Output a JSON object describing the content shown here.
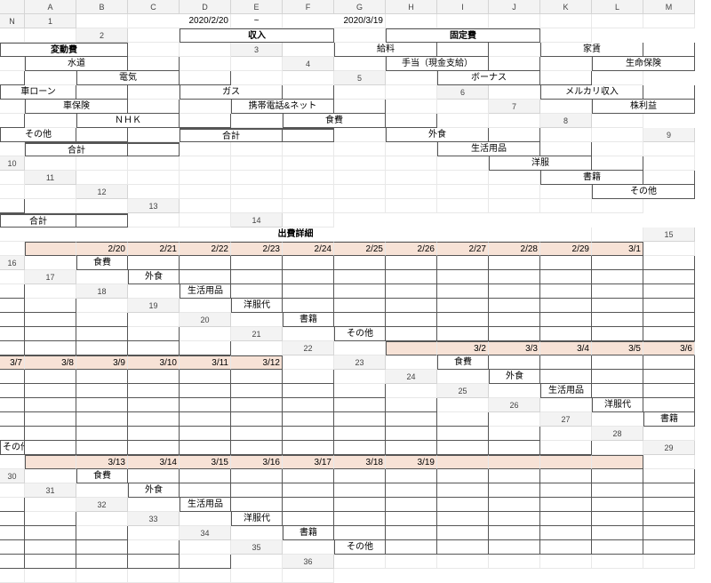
{
  "columns": [
    "A",
    "B",
    "C",
    "D",
    "E",
    "F",
    "G",
    "H",
    "I",
    "J",
    "K",
    "L",
    "M",
    "N"
  ],
  "row_count": 36,
  "dates": {
    "start": "2020/2/20",
    "tilde": "~",
    "end": "2020/3/19"
  },
  "income": {
    "title": "収入",
    "items": [
      "給料",
      "手当（現金支給）",
      "ボーナス",
      "メルカリ収入",
      "株利益",
      "その他"
    ],
    "total_label": "合計"
  },
  "fixed": {
    "title": "固定費",
    "items": [
      "家賃",
      "生命保険",
      "車ローン",
      "車保険",
      "ＮＨＫ"
    ],
    "total_label": "合計"
  },
  "variable": {
    "title": "変動費",
    "items": [
      "水道",
      "電気",
      "ガス",
      "携帯電話&ネット",
      "食費",
      "外食",
      "生活用品",
      "洋服",
      "書籍",
      "その他"
    ],
    "total_label": "合計"
  },
  "detail": {
    "title": "出費詳細",
    "row_labels": [
      "食費",
      "外食",
      "生活用品",
      "洋服代",
      "書籍",
      "その他"
    ],
    "date_sets": [
      [
        "2/20",
        "2/21",
        "2/22",
        "2/23",
        "2/24",
        "2/25",
        "2/26",
        "2/27",
        "2/28",
        "2/29",
        "3/1"
      ],
      [
        "3/2",
        "3/3",
        "3/4",
        "3/5",
        "3/6",
        "3/7",
        "3/8",
        "3/9",
        "3/10",
        "3/11",
        "3/12"
      ],
      [
        "3/13",
        "3/14",
        "3/15",
        "3/16",
        "3/17",
        "3/18",
        "3/19",
        "",
        "",
        "",
        ""
      ]
    ]
  },
  "colors": {
    "header_fill": "#f7e2d6",
    "grid_line": "#e8e8e8",
    "border_dark": "#555555",
    "col_header_bg": "#f3f3f3"
  }
}
